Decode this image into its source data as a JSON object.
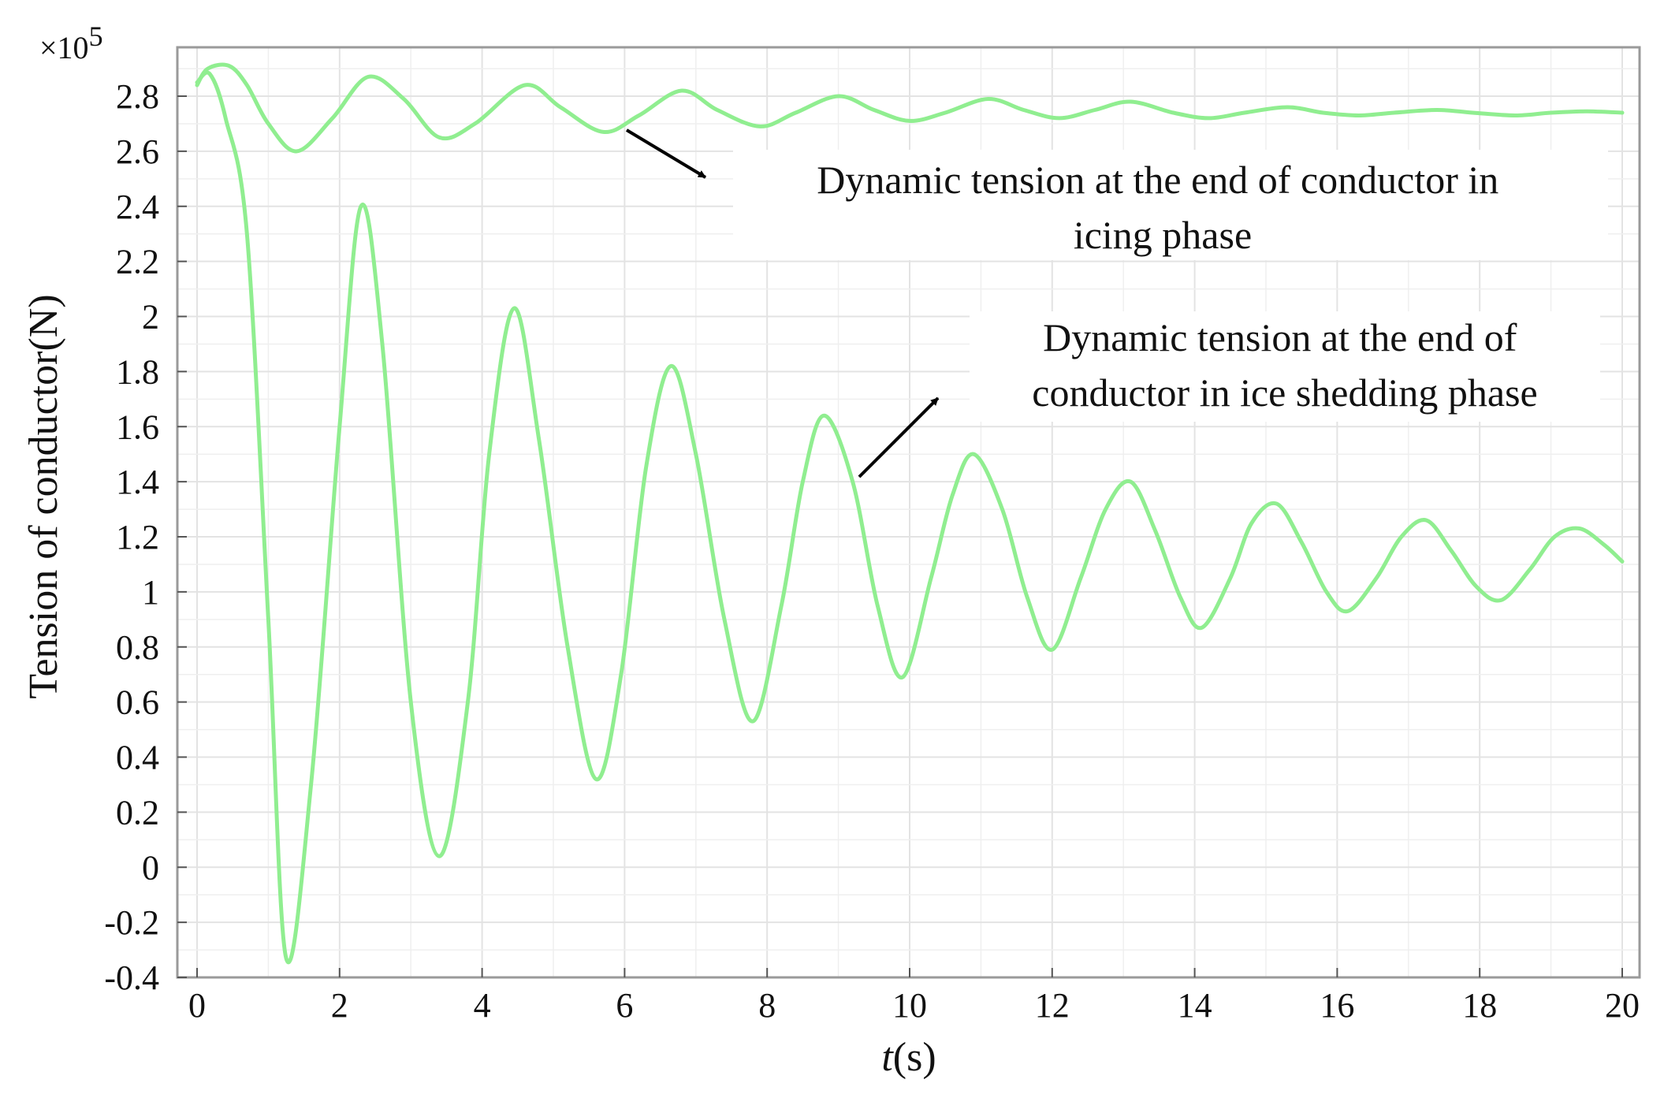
{
  "chart_data": {
    "type": "line",
    "title": "",
    "xlabel_italic": "t",
    "xlabel_rest": "(s)",
    "ylabel": "Tension of conductor(N)",
    "y_multiplier_base": "×10",
    "y_multiplier_exp": "5",
    "xlim": [
      0,
      20
    ],
    "ylim": [
      -0.4,
      2.95
    ],
    "x_ticks": [
      0,
      2,
      4,
      6,
      8,
      10,
      12,
      14,
      16,
      18,
      20
    ],
    "x_tick_labels": [
      "0",
      "2",
      "4",
      "6",
      "8",
      "10",
      "12",
      "14",
      "16",
      "18",
      "20"
    ],
    "y_ticks": [
      -0.4,
      -0.2,
      0,
      0.2,
      0.4,
      0.6,
      0.8,
      1,
      1.2,
      1.4,
      1.6,
      1.8,
      2,
      2.2,
      2.4,
      2.6,
      2.8
    ],
    "y_tick_labels": [
      "-0.4",
      "-0.2",
      "0",
      "0.2",
      "0.4",
      "0.6",
      "0.8",
      "1",
      "1.2",
      "1.4",
      "1.6",
      "1.8",
      "2",
      "2.2",
      "2.4",
      "2.6",
      "2.8"
    ],
    "grid": true,
    "line_color": "#90ee90",
    "series": [
      {
        "id": "icing",
        "points": [
          [
            0,
            2.84
          ],
          [
            0.15,
            2.9
          ],
          [
            0.45,
            2.91
          ],
          [
            0.7,
            2.84
          ],
          [
            1.0,
            2.7
          ],
          [
            1.4,
            2.6
          ],
          [
            1.9,
            2.72
          ],
          [
            2.4,
            2.87
          ],
          [
            2.9,
            2.79
          ],
          [
            3.4,
            2.65
          ],
          [
            3.9,
            2.7
          ],
          [
            4.6,
            2.84
          ],
          [
            5.1,
            2.76
          ],
          [
            5.7,
            2.67
          ],
          [
            6.2,
            2.73
          ],
          [
            6.8,
            2.82
          ],
          [
            7.3,
            2.75
          ],
          [
            7.9,
            2.69
          ],
          [
            8.4,
            2.74
          ],
          [
            9.0,
            2.8
          ],
          [
            9.5,
            2.75
          ],
          [
            10.0,
            2.71
          ],
          [
            10.5,
            2.74
          ],
          [
            11.1,
            2.79
          ],
          [
            11.6,
            2.75
          ],
          [
            12.1,
            2.72
          ],
          [
            12.6,
            2.75
          ],
          [
            13.1,
            2.78
          ],
          [
            13.7,
            2.74
          ],
          [
            14.2,
            2.72
          ],
          [
            14.7,
            2.74
          ],
          [
            15.3,
            2.76
          ],
          [
            15.8,
            2.74
          ],
          [
            16.3,
            2.73
          ],
          [
            16.8,
            2.74
          ],
          [
            17.4,
            2.75
          ],
          [
            17.9,
            2.74
          ],
          [
            18.5,
            2.73
          ],
          [
            19.0,
            2.74
          ],
          [
            19.5,
            2.745
          ],
          [
            20.0,
            2.74
          ]
        ]
      },
      {
        "id": "shedding",
        "points": [
          [
            0,
            2.85
          ],
          [
            0.18,
            2.88
          ],
          [
            0.4,
            2.72
          ],
          [
            0.7,
            2.3
          ],
          [
            1.0,
            0.9
          ],
          [
            1.25,
            -0.33
          ],
          [
            1.6,
            0.3
          ],
          [
            2.0,
            1.6
          ],
          [
            2.3,
            2.4
          ],
          [
            2.6,
            1.9
          ],
          [
            3.0,
            0.6
          ],
          [
            3.4,
            0.04
          ],
          [
            3.8,
            0.6
          ],
          [
            4.1,
            1.5
          ],
          [
            4.45,
            2.03
          ],
          [
            4.8,
            1.55
          ],
          [
            5.2,
            0.8
          ],
          [
            5.6,
            0.32
          ],
          [
            5.95,
            0.7
          ],
          [
            6.3,
            1.45
          ],
          [
            6.65,
            1.82
          ],
          [
            7.0,
            1.5
          ],
          [
            7.4,
            0.9
          ],
          [
            7.8,
            0.53
          ],
          [
            8.2,
            0.95
          ],
          [
            8.5,
            1.4
          ],
          [
            8.8,
            1.64
          ],
          [
            9.2,
            1.4
          ],
          [
            9.55,
            0.95
          ],
          [
            9.9,
            0.69
          ],
          [
            10.3,
            1.05
          ],
          [
            10.6,
            1.35
          ],
          [
            10.9,
            1.5
          ],
          [
            11.3,
            1.3
          ],
          [
            11.65,
            0.98
          ],
          [
            12.0,
            0.79
          ],
          [
            12.4,
            1.05
          ],
          [
            12.75,
            1.3
          ],
          [
            13.1,
            1.4
          ],
          [
            13.45,
            1.22
          ],
          [
            13.8,
            0.98
          ],
          [
            14.1,
            0.87
          ],
          [
            14.5,
            1.05
          ],
          [
            14.8,
            1.25
          ],
          [
            15.15,
            1.32
          ],
          [
            15.5,
            1.18
          ],
          [
            15.85,
            1.0
          ],
          [
            16.15,
            0.93
          ],
          [
            16.55,
            1.05
          ],
          [
            16.9,
            1.2
          ],
          [
            17.25,
            1.26
          ],
          [
            17.6,
            1.15
          ],
          [
            17.95,
            1.02
          ],
          [
            18.3,
            0.97
          ],
          [
            18.7,
            1.08
          ],
          [
            19.05,
            1.2
          ],
          [
            19.4,
            1.23
          ],
          [
            19.75,
            1.17
          ],
          [
            20.0,
            1.11
          ]
        ]
      }
    ],
    "annotations": [
      {
        "id": "icing",
        "lines": [
          "Dynamic tension at the end of conductor in",
          "icing phase"
        ]
      },
      {
        "id": "shedding",
        "lines": [
          "Dynamic tension at the end of",
          "conductor in ice shedding phase"
        ]
      }
    ]
  }
}
